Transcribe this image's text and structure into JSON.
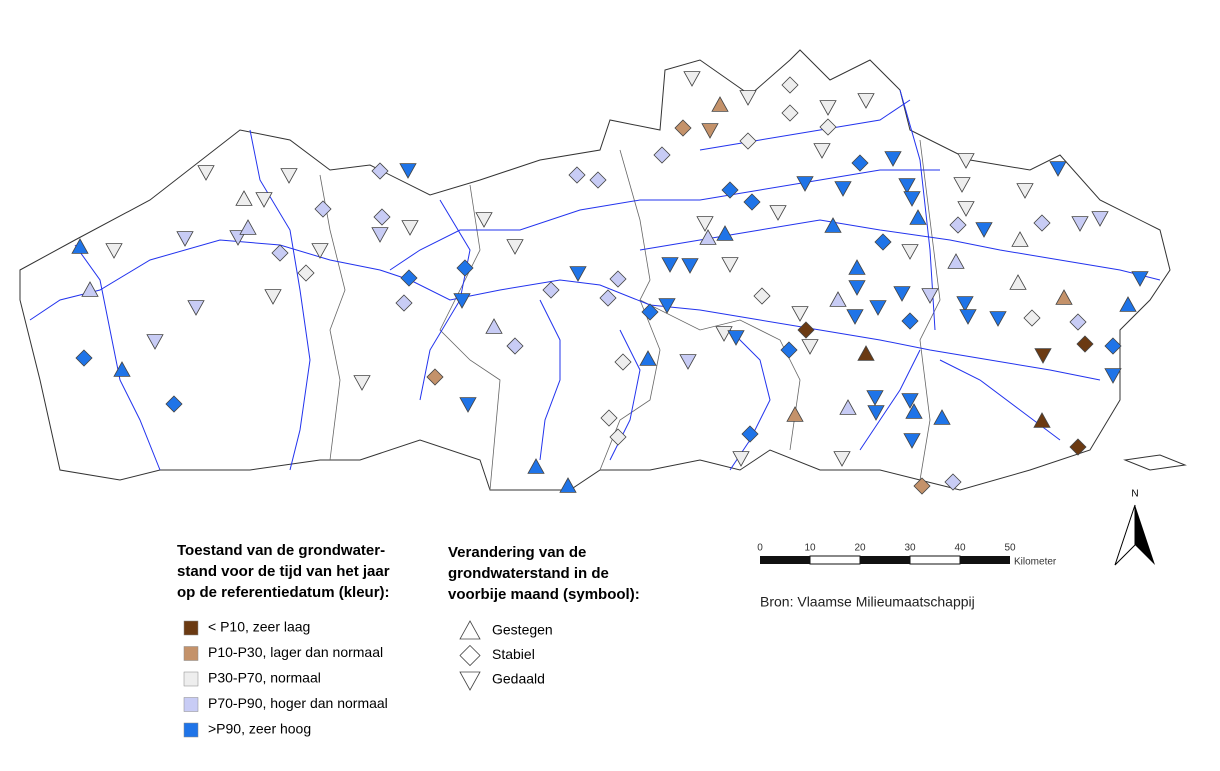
{
  "legend_color": {
    "title_lines": [
      "Toestand van de grondwater-",
      "stand voor de tijd van het jaar",
      "op de referentiedatum (kleur):"
    ],
    "items": [
      "< P10, zeer laag",
      "P10-P30, lager dan normaal",
      "P30-P70, normaal",
      "P70-P90, hoger dan normaal",
      ">P90, zeer hoog"
    ]
  },
  "legend_symbol": {
    "title_lines": [
      "Verandering van de",
      "grondwaterstand in de",
      "voorbije maand (symbool):"
    ],
    "items": [
      "Gestegen",
      "Stabiel",
      "Gedaald"
    ]
  },
  "scale_bar": {
    "labels": [
      "0",
      "10",
      "20",
      "30",
      "40",
      "50"
    ],
    "unit": "Kilometer"
  },
  "north_arrow": "N",
  "source": "Bron: Vlaamse Milieumaatschappij"
}
